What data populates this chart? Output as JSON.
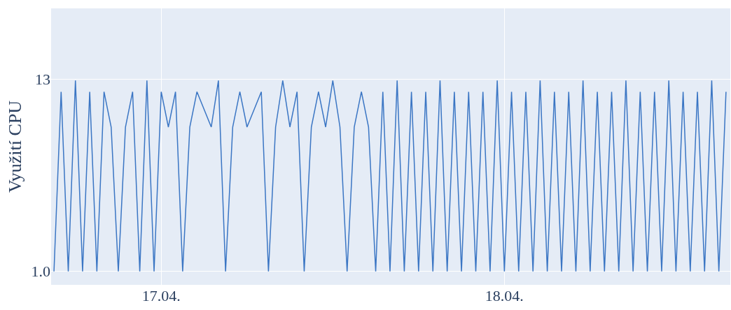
{
  "chart_data": {
    "type": "line",
    "ylabel": "Využití CPU",
    "x": [
      "--04-16T16:30",
      "--04-16T17:00",
      "--04-16T17:30",
      "--04-16T18:00",
      "--04-16T18:30",
      "--04-16T19:00",
      "--04-16T19:30",
      "--04-16T20:00",
      "--04-16T20:30",
      "--04-16T21:00",
      "--04-16T21:30",
      "--04-16T22:00",
      "--04-16T22:30",
      "--04-16T23:00",
      "--04-16T23:30",
      "--04-17T00:00",
      "--04-17T00:30",
      "--04-17T01:00",
      "--04-17T01:30",
      "--04-17T02:00",
      "--04-17T02:30",
      "--04-17T03:00",
      "--04-17T03:30",
      "--04-17T04:00",
      "--04-17T04:30",
      "--04-17T05:00",
      "--04-17T05:30",
      "--04-17T06:00",
      "--04-17T06:30",
      "--04-17T07:00",
      "--04-17T07:30",
      "--04-17T08:00",
      "--04-17T08:30",
      "--04-17T09:00",
      "--04-17T09:30",
      "--04-17T10:00",
      "--04-17T10:30",
      "--04-17T11:00",
      "--04-17T11:30",
      "--04-17T12:00",
      "--04-17T12:30",
      "--04-17T13:00",
      "--04-17T13:30",
      "--04-17T14:00",
      "--04-17T14:30",
      "--04-17T15:00",
      "--04-17T15:30",
      "--04-17T16:00",
      "--04-17T16:30",
      "--04-17T17:00",
      "--04-17T17:30",
      "--04-17T18:00",
      "--04-17T18:30",
      "--04-17T19:00",
      "--04-17T19:30",
      "--04-17T20:00",
      "--04-17T20:30",
      "--04-17T21:00",
      "--04-17T21:30",
      "--04-17T22:00",
      "--04-17T22:30",
      "--04-17T23:00",
      "--04-17T23:30",
      "--04-18T00:00",
      "--04-18T00:30",
      "--04-18T01:00",
      "--04-18T01:30",
      "--04-18T02:00",
      "--04-18T02:30",
      "--04-18T03:00",
      "--04-18T03:30",
      "--04-18T04:00",
      "--04-18T04:30",
      "--04-18T05:00",
      "--04-18T05:30",
      "--04-18T06:00",
      "--04-18T06:30",
      "--04-18T07:00",
      "--04-18T07:30",
      "--04-18T08:00",
      "--04-18T08:30",
      "--04-18T09:00",
      "--04-18T09:30",
      "--04-18T10:00",
      "--04-18T10:30",
      "--04-18T11:00",
      "--04-18T11:30",
      "--04-18T12:00",
      "--04-18T12:30",
      "--04-18T13:00",
      "--04-18T13:30",
      "--04-18T14:00",
      "--04-18T14:30",
      "--04-18T15:00",
      "--04-18T15:30"
    ],
    "series": [
      {
        "color": "#3b76c4",
        "values": [
          1,
          12.2,
          1,
          12.9,
          1,
          12.2,
          1,
          12.2,
          10,
          1,
          10,
          12.2,
          1,
          12.9,
          1,
          12.2,
          10,
          12.2,
          1,
          10,
          12.2,
          11.1,
          10,
          12.9,
          1,
          10,
          12.2,
          10,
          11.1,
          12.2,
          1,
          10,
          12.9,
          10,
          12.2,
          1,
          10,
          12.2,
          10,
          12.9,
          10,
          1,
          10,
          12.2,
          10,
          1,
          12.2,
          1,
          12.9,
          1,
          12.2,
          1,
          12.2,
          1,
          12.9,
          1,
          12.2,
          1,
          12.2,
          1,
          12.2,
          1,
          12.9,
          1,
          12.2,
          1,
          12.2,
          1,
          12.9,
          1,
          12.2,
          1,
          12.2,
          1,
          12.9,
          1,
          12.2,
          1,
          12.2,
          1,
          12.9,
          1,
          12.2,
          1,
          12.2,
          1,
          12.9,
          1,
          12.2,
          1,
          12.2,
          1,
          12.9,
          1,
          12.2
        ]
      }
    ],
    "xlim": [
      "--04-16T16:18",
      "--04-18T15:48"
    ],
    "xticks": [
      {
        "value": "--04-17",
        "label": "17.04."
      },
      {
        "value": "--04-18",
        "label": "18.04."
      }
    ],
    "ylim": [
      0.16,
      17.4
    ],
    "yticks": [
      {
        "value": 1,
        "label": "1.0"
      },
      13
    ],
    "grid": true,
    "marker": "none",
    "line_style": "solid"
  }
}
